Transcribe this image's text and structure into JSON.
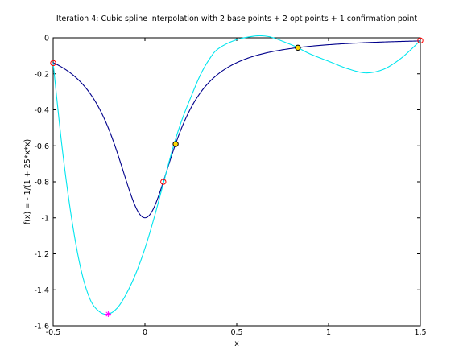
{
  "chart_data": {
    "type": "line",
    "title": "Iteration 4: Cubic spline interpolation with 2 base points + 2 opt points + 1 confirmation point",
    "xlabel": "x",
    "ylabel": "f(x) = - 1/(1 + 25*x*x)",
    "xlim": [
      -0.5,
      1.5
    ],
    "ylim": [
      -1.6,
      0
    ],
    "xticks": [
      -0.5,
      0,
      0.5,
      1,
      1.5
    ],
    "xtick_labels": [
      "-0.5",
      "0",
      "0.5",
      "1",
      "1.5"
    ],
    "yticks": [
      0,
      -0.2,
      -0.4,
      -0.6,
      -0.8,
      -1,
      -1.2,
      -1.4,
      -1.6
    ],
    "ytick_labels": [
      "0",
      "-0.2",
      "-0.4",
      "-0.6",
      "-0.8",
      "-1",
      "-1.2",
      "-1.4",
      "-1.6"
    ],
    "grid": false,
    "series": [
      {
        "color": "#00008b",
        "function": "-1/(1+25*x*x)"
      },
      {
        "color": "#00e5ee",
        "x": [
          -0.5,
          -0.45,
          -0.4,
          -0.35,
          -0.3,
          -0.25,
          -0.2,
          -0.15,
          -0.1,
          -0.05,
          0.0,
          0.05,
          0.1,
          0.15,
          0.2,
          0.25,
          0.3,
          0.35,
          0.4,
          0.5,
          0.6,
          0.65,
          0.7,
          0.8,
          0.833,
          0.9,
          1.0,
          1.1,
          1.2,
          1.3,
          1.4,
          1.5
        ],
        "y": [
          -0.14,
          -0.62,
          -1.0,
          -1.28,
          -1.45,
          -1.52,
          -1.535,
          -1.5,
          -1.42,
          -1.31,
          -1.17,
          -1.0,
          -0.81,
          -0.62,
          -0.46,
          -0.33,
          -0.21,
          -0.12,
          -0.06,
          -0.01,
          0.01,
          0.01,
          0.0,
          -0.04,
          -0.055,
          -0.09,
          -0.13,
          -0.17,
          -0.195,
          -0.175,
          -0.11,
          -0.015
        ]
      }
    ],
    "points": [
      {
        "x": -0.5,
        "y": -0.14,
        "marker": "circle",
        "color": "#ff0000",
        "fill": "none"
      },
      {
        "x": 0.1,
        "y": -0.8,
        "marker": "circle",
        "color": "#ff0000",
        "fill": "none"
      },
      {
        "x": 1.5,
        "y": -0.015,
        "marker": "circle",
        "color": "#ff0000",
        "fill": "none"
      },
      {
        "x": 0.167,
        "y": -0.59,
        "marker": "circle",
        "color": "#000000",
        "fill": "#ffd700"
      },
      {
        "x": 0.833,
        "y": -0.055,
        "marker": "circle",
        "color": "#000000",
        "fill": "#ffd700"
      },
      {
        "x": -0.2,
        "y": -1.535,
        "marker": "star",
        "color": "#ff00ff",
        "fill": "none"
      }
    ]
  }
}
